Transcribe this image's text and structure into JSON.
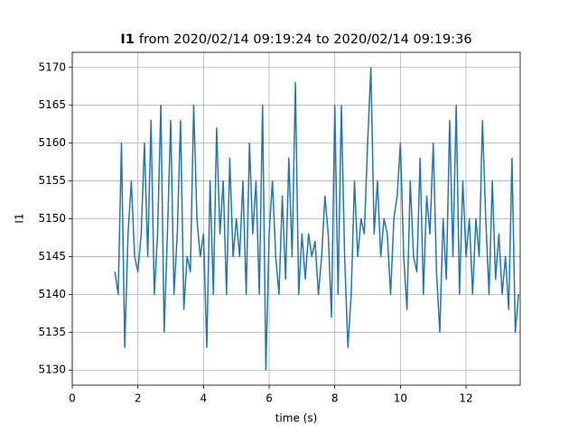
{
  "chart_data": {
    "type": "line",
    "title_variable": "I1",
    "title_rest": "from 2020/02/14 09:19:24 to 2020/02/14 09:19:36",
    "xlabel": "time (s)",
    "ylabel": "I1",
    "xlim": [
      0,
      13.65
    ],
    "ylim": [
      5128,
      5172
    ],
    "xticks": [
      0,
      2,
      4,
      6,
      8,
      10,
      12
    ],
    "yticks": [
      5130,
      5135,
      5140,
      5145,
      5150,
      5155,
      5160,
      5165,
      5170
    ],
    "grid": true,
    "series": [
      {
        "color": "#1f77b4",
        "x": [
          1.3,
          1.4,
          1.5,
          1.6,
          1.7,
          1.8,
          1.9,
          2.0,
          2.1,
          2.2,
          2.3,
          2.4,
          2.5,
          2.6,
          2.7,
          2.8,
          2.9,
          3.0,
          3.1,
          3.2,
          3.3,
          3.4,
          3.5,
          3.6,
          3.7,
          3.8,
          3.9,
          4.0,
          4.1,
          4.2,
          4.3,
          4.4,
          4.5,
          4.6,
          4.7,
          4.8,
          4.9,
          5.0,
          5.1,
          5.2,
          5.3,
          5.4,
          5.5,
          5.6,
          5.7,
          5.8,
          5.9,
          6.0,
          6.1,
          6.2,
          6.3,
          6.4,
          6.5,
          6.6,
          6.7,
          6.8,
          6.9,
          7.0,
          7.1,
          7.2,
          7.3,
          7.4,
          7.5,
          7.6,
          7.7,
          7.8,
          7.9,
          8.0,
          8.1,
          8.2,
          8.3,
          8.4,
          8.5,
          8.6,
          8.7,
          8.8,
          8.9,
          9.0,
          9.1,
          9.2,
          9.3,
          9.4,
          9.5,
          9.6,
          9.7,
          9.8,
          9.9,
          10.0,
          10.1,
          10.2,
          10.3,
          10.4,
          10.5,
          10.6,
          10.7,
          10.8,
          10.9,
          11.0,
          11.1,
          11.2,
          11.3,
          11.4,
          11.5,
          11.6,
          11.7,
          11.8,
          11.9,
          12.0,
          12.1,
          12.2,
          12.3,
          12.4,
          12.5,
          12.6,
          12.7,
          12.8,
          12.9,
          13.0,
          13.1,
          13.2,
          13.3,
          13.4,
          13.5,
          13.6
        ],
        "values": [
          5143,
          5140,
          5160,
          5133,
          5148,
          5155,
          5145,
          5143,
          5148,
          5160,
          5145,
          5163,
          5140,
          5148,
          5165,
          5135,
          5148,
          5163,
          5140,
          5148,
          5163,
          5138,
          5145,
          5143,
          5165,
          5150,
          5145,
          5148,
          5133,
          5155,
          5140,
          5162,
          5148,
          5155,
          5140,
          5158,
          5145,
          5150,
          5145,
          5155,
          5140,
          5160,
          5148,
          5155,
          5140,
          5165,
          5130,
          5148,
          5155,
          5145,
          5140,
          5153,
          5142,
          5158,
          5145,
          5168,
          5140,
          5148,
          5142,
          5148,
          5145,
          5147,
          5140,
          5145,
          5153,
          5148,
          5137,
          5165,
          5140,
          5165,
          5145,
          5133,
          5140,
          5155,
          5145,
          5150,
          5148,
          5160,
          5170,
          5148,
          5155,
          5145,
          5150,
          5148,
          5140,
          5150,
          5153,
          5160,
          5145,
          5138,
          5155,
          5145,
          5143,
          5158,
          5140,
          5153,
          5148,
          5160,
          5143,
          5135,
          5150,
          5142,
          5163,
          5145,
          5165,
          5140,
          5155,
          5145,
          5150,
          5140,
          5150,
          5145,
          5163,
          5150,
          5140,
          5155,
          5142,
          5148,
          5140,
          5145,
          5138,
          5158,
          5135,
          5140
        ]
      }
    ]
  }
}
